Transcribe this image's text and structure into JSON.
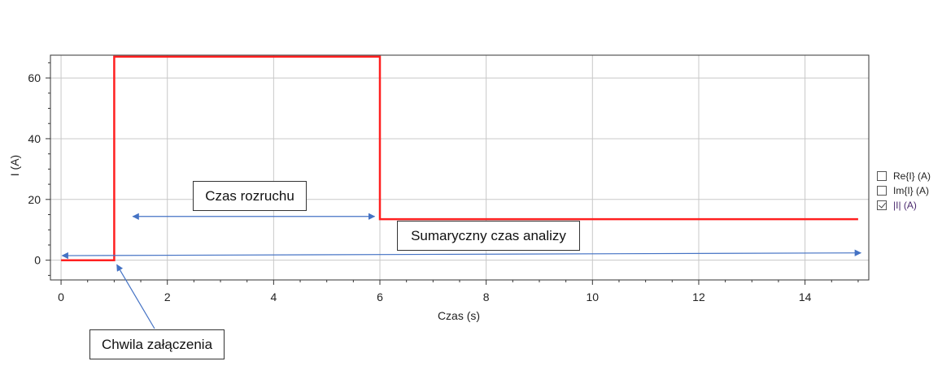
{
  "chart_data": {
    "type": "line",
    "xlabel": "Czas (s)",
    "ylabel": "I (A)",
    "xlim": [
      -0.2,
      15.2
    ],
    "ylim": [
      -6.5,
      67.5
    ],
    "xticks": [
      0,
      2,
      4,
      6,
      8,
      10,
      12,
      14
    ],
    "yticks": [
      0,
      20,
      40,
      60
    ],
    "grid": true,
    "series": [
      {
        "name": "|I| (A)",
        "color": "#ff2020",
        "x": [
          0,
          1,
          1,
          6,
          6,
          15
        ],
        "y": [
          0,
          0,
          67,
          67,
          13.5,
          13.5
        ]
      }
    ],
    "legend": {
      "placement": "right",
      "items": [
        {
          "label": "Re{I} (A)",
          "checked": false
        },
        {
          "label": "Im{I} (A)",
          "checked": false
        },
        {
          "label": "|I| (A)",
          "checked": true
        }
      ]
    },
    "annotations": {
      "rozruch": {
        "text": "Czas rozruchu"
      },
      "analiza": {
        "text": "Sumaryczny czas analizy"
      },
      "zalaczenie": {
        "text": "Chwila załączenia"
      }
    }
  },
  "colors": {
    "arrow": "#4472c4",
    "grid": "#c8c8c8",
    "axis": "#333333"
  }
}
